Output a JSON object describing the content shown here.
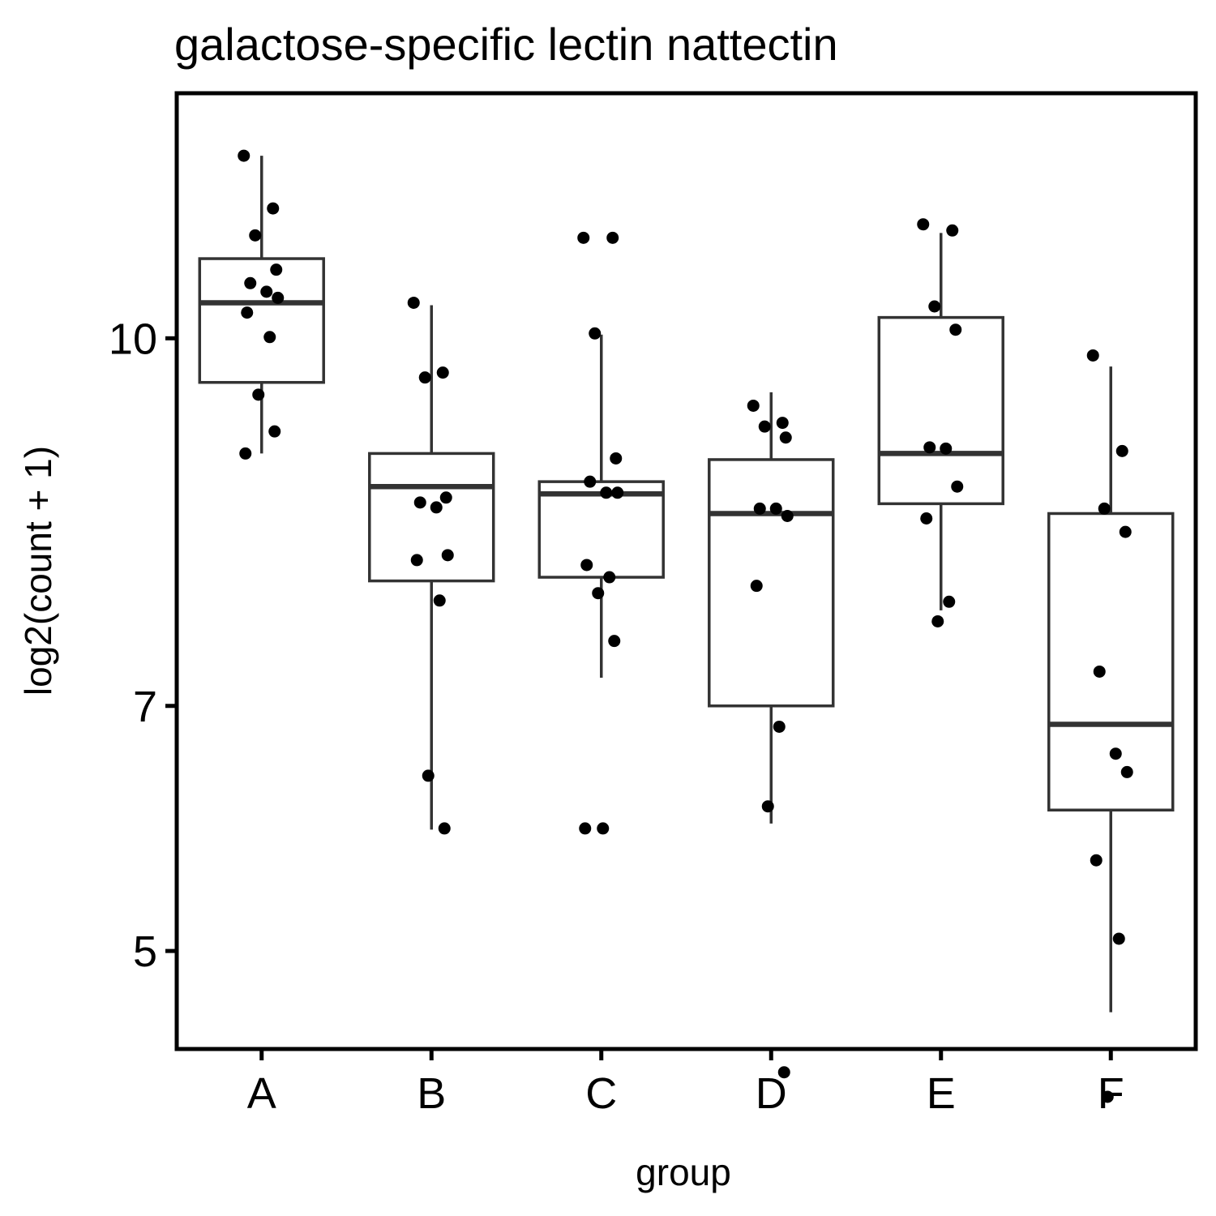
{
  "chart_data": {
    "type": "box",
    "title": "galactose-specific lectin nattectin",
    "xlabel": "group",
    "ylabel": "log2(count + 1)",
    "categories": [
      "A",
      "B",
      "C",
      "D",
      "E",
      "F"
    ],
    "ylim": [
      4.2,
      12.0
    ],
    "yticks": [
      5,
      7,
      10
    ],
    "ytick_labels": [
      "5",
      "7",
      "10"
    ],
    "grid": false,
    "legend": "none",
    "colors": {
      "box_line": "#333333",
      "point": "#000000",
      "frame": "#000000",
      "background": "#ffffff"
    },
    "boxes": [
      {
        "group": "A",
        "whisker_low": 9.06,
        "q1": 9.64,
        "median": 10.29,
        "q3": 10.65,
        "whisker_high": 11.49
      },
      {
        "group": "B",
        "whisker_low": 5.99,
        "q1": 8.02,
        "median": 8.79,
        "q3": 9.06,
        "whisker_high": 10.27
      },
      {
        "group": "C",
        "whisker_low": 7.23,
        "q1": 8.05,
        "median": 8.73,
        "q3": 8.83,
        "whisker_high": 10.03
      },
      {
        "group": "D",
        "whisker_low": 6.04,
        "q1": 7.0,
        "median": 8.57,
        "q3": 9.01,
        "whisker_high": 9.56
      },
      {
        "group": "E",
        "whisker_low": 7.78,
        "q1": 8.65,
        "median": 9.06,
        "q3": 10.17,
        "whisker_high": 10.86
      },
      {
        "group": "F",
        "whisker_low": 4.5,
        "q1": 6.15,
        "median": 6.85,
        "q3": 8.57,
        "whisker_high": 9.77
      }
    ],
    "points": [
      {
        "group": "A",
        "values": [
          11.49,
          11.06,
          10.84,
          10.56,
          10.45,
          10.38,
          10.33,
          10.21,
          10.01,
          9.54,
          9.24,
          9.06
        ]
      },
      {
        "group": "B",
        "values": [
          10.29,
          9.72,
          9.68,
          8.7,
          8.66,
          8.62,
          8.23,
          8.19,
          7.86,
          6.43,
          6.0
        ]
      },
      {
        "group": "C",
        "values": [
          10.82,
          10.82,
          10.04,
          9.02,
          8.83,
          8.74,
          8.74,
          8.15,
          8.05,
          7.92,
          7.53,
          6.0,
          6.0
        ]
      },
      {
        "group": "D",
        "values": [
          9.45,
          9.31,
          9.28,
          9.19,
          8.61,
          8.61,
          8.55,
          7.98,
          6.83,
          6.18,
          4.01
        ]
      },
      {
        "group": "E",
        "values": [
          10.93,
          10.88,
          10.26,
          10.07,
          9.11,
          9.1,
          8.79,
          8.53,
          7.85,
          7.69
        ]
      },
      {
        "group": "F",
        "values": [
          9.86,
          9.08,
          8.61,
          8.42,
          7.28,
          6.61,
          6.46,
          5.74,
          5.1,
          3.81
        ]
      }
    ]
  }
}
